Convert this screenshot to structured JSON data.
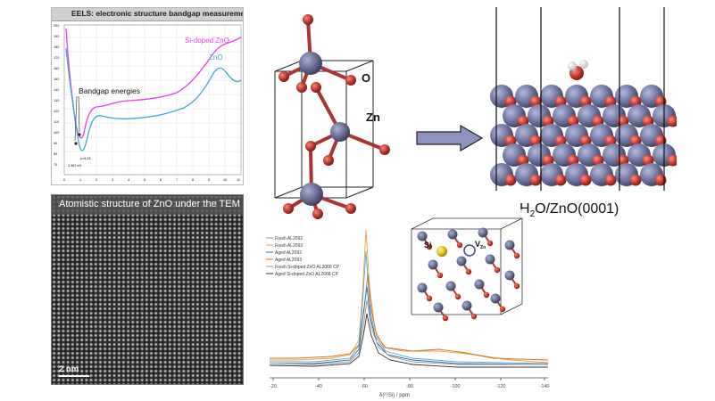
{
  "eels": {
    "title": "EELS: electronic structure bandgap measurement",
    "series": [
      {
        "label": "Si-doped ZnO",
        "color": "#ee3ee0"
      },
      {
        "label": "ZnO",
        "color": "#3ea5d4"
      }
    ],
    "annotation": "Bandgap energies",
    "y_ticks": [
      "200",
      "190",
      "180",
      "170",
      "160",
      "150",
      "140",
      "130",
      "120",
      "110",
      "100",
      "90",
      "80",
      "70"
    ],
    "x_ticks": [
      "0",
      "1",
      "2",
      "3",
      "4",
      "5",
      "6",
      "7",
      "8",
      "9",
      "10",
      "11"
    ]
  },
  "tem": {
    "title": "Atomistic structure of ZnO under the TEM",
    "scale_label": "2 nm"
  },
  "cell": {
    "labels": {
      "oxygen": "O",
      "zinc": "Zn"
    },
    "zn_color": "#6b6f94",
    "o_color": "#c0392b"
  },
  "surface": {
    "label_main": "H",
    "label_sub": "2",
    "label_rest": "O/ZnO(0001)"
  },
  "nmr": {
    "legend": [
      {
        "label": "Fresh AL2092",
        "color": "#5aa7d6"
      },
      {
        "label": "Fresh AL2093",
        "color": "#e8a33a"
      },
      {
        "label": "Aged AL2092",
        "color": "#2a6fa3"
      },
      {
        "label": "Aged AL2093",
        "color": "#d76b1e"
      },
      {
        "label": "Fresh Si-doped ZnO AL2068 CP",
        "color": "#9a9a9a"
      },
      {
        "label": "Aged Si-doped ZnO AL2068 CP",
        "color": "#333333"
      }
    ],
    "x_ticks": [
      "-20",
      "-40",
      "-60",
      "-80",
      "-100",
      "-120",
      "-140"
    ],
    "xlabel": "δ(²⁹Si) / ppm",
    "inset_labels": {
      "si": "Si",
      "vzn_main": "V",
      "vzn_sub": "Zn"
    }
  }
}
